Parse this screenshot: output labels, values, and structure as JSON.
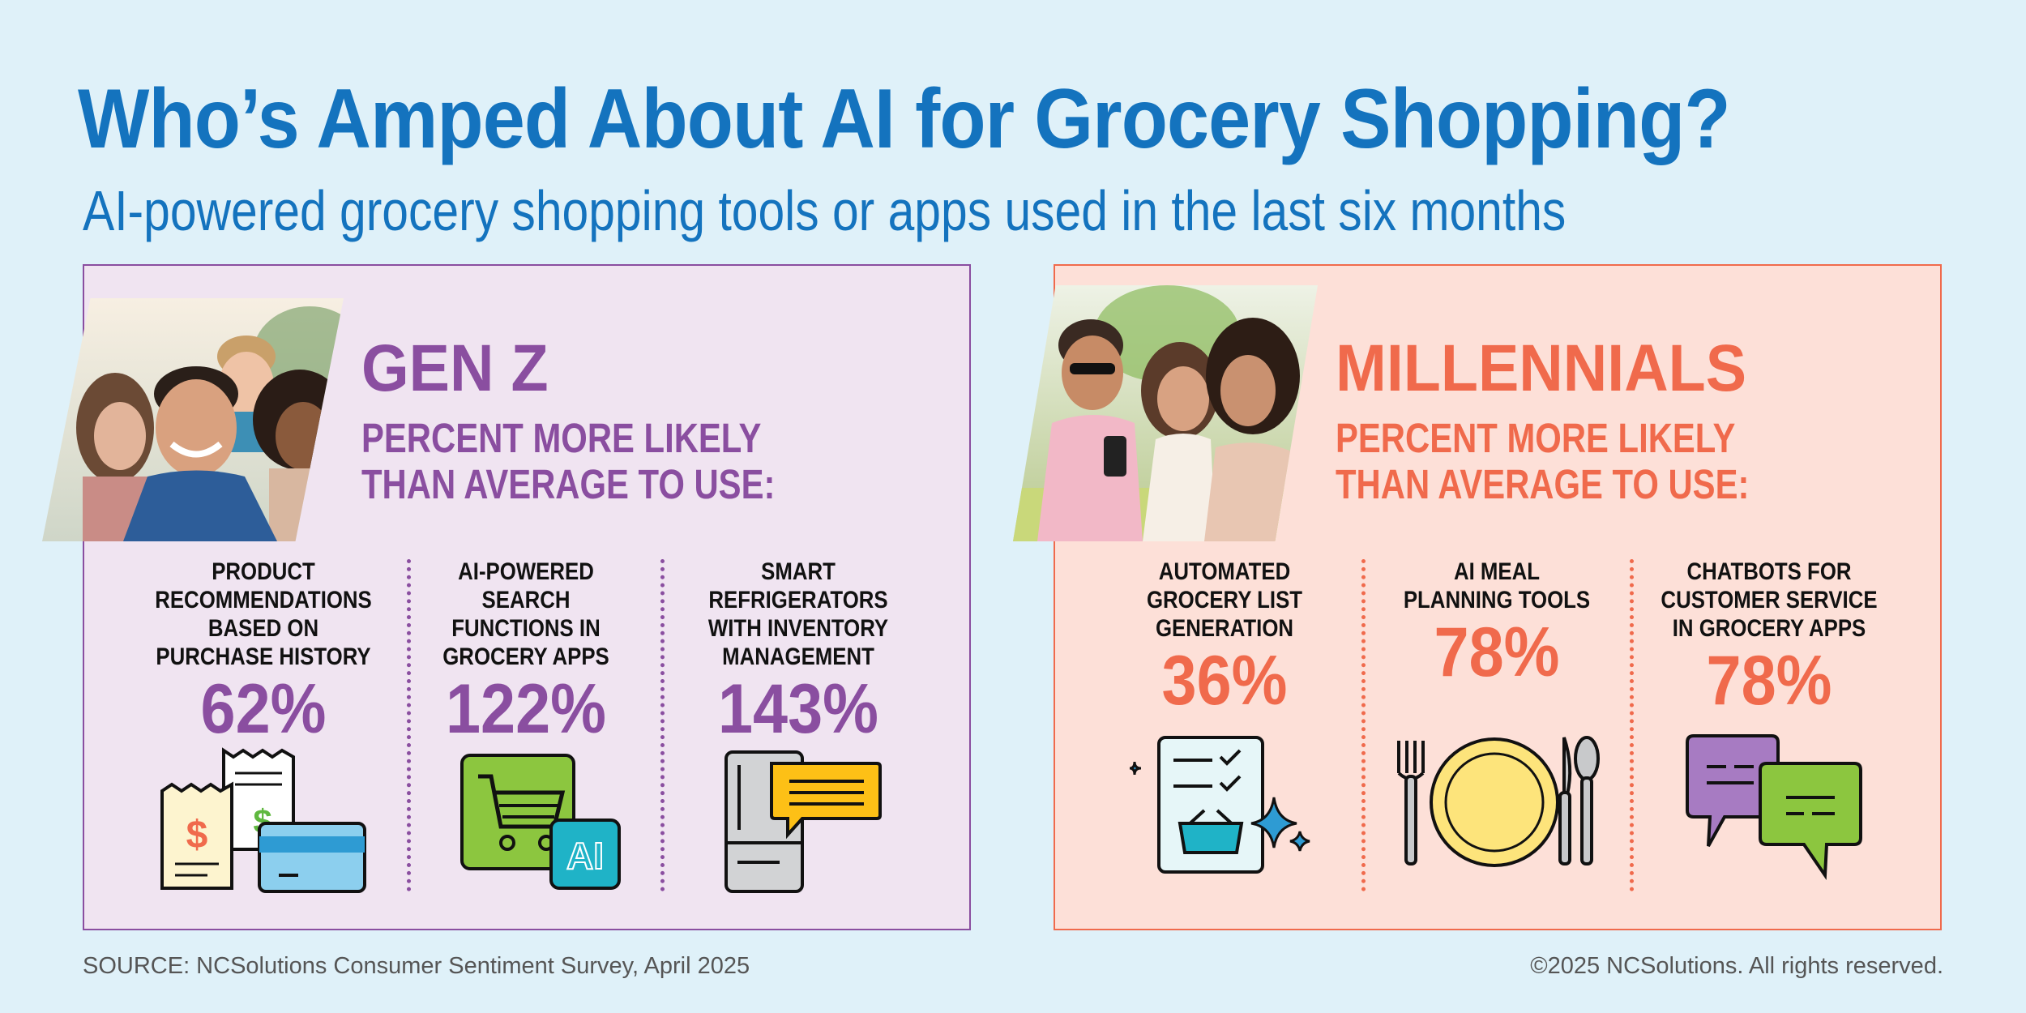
{
  "header": {
    "title": "Who’s Amped About AI for Grocery Shopping?",
    "subtitle": "AI-powered grocery shopping tools or apps used in the last six months"
  },
  "genz": {
    "heading": "GEN Z",
    "desc_line1": "PERCENT MORE LIKELY",
    "desc_line2": "THAN AVERAGE TO USE:",
    "accent_color": "#8a4ea0",
    "stats": [
      {
        "label": "PRODUCT\nRECOMMENDATIONS\nBASED ON\nPURCHASE HISTORY",
        "value": "62%",
        "icon": "receipts-and-card-icon"
      },
      {
        "label": "AI-POWERED\nSEARCH\nFUNCTIONS IN\nGROCERY APPS",
        "value": "122%",
        "icon": "shopping-cart-ai-icon"
      },
      {
        "label": "SMART\nREFRIGERATORS\nWITH INVENTORY\nMANAGEMENT",
        "value": "143%",
        "icon": "refrigerator-chat-icon"
      }
    ]
  },
  "millennials": {
    "heading": "MILLENNIALS",
    "desc_line1": "PERCENT MORE LIKELY",
    "desc_line2": "THAN AVERAGE TO USE:",
    "accent_color": "#f06a4c",
    "stats": [
      {
        "label": "AUTOMATED\nGROCERY LIST\nGENERATION",
        "value": "36%",
        "icon": "checklist-basket-icon"
      },
      {
        "label": "AI MEAL\nPLANNING TOOLS",
        "value": "78%",
        "icon": "plate-and-cutlery-icon"
      },
      {
        "label": "CHATBOTS FOR\nCUSTOMER SERVICE\nIN GROCERY APPS",
        "value": "78%",
        "icon": "chat-bubbles-icon"
      }
    ]
  },
  "icon_text": {
    "ai_badge": "AI",
    "dollar": "$"
  },
  "footer": {
    "source": "SOURCE: NCSolutions Consumer Sentiment Survey, April 2025",
    "copyright": "©2025 NCSolutions. All rights reserved."
  },
  "colors": {
    "background": "#dff1f9",
    "title_blue": "#1473be",
    "genz_panel": "#f0e4f1",
    "millennials_panel": "#fde0d8"
  }
}
